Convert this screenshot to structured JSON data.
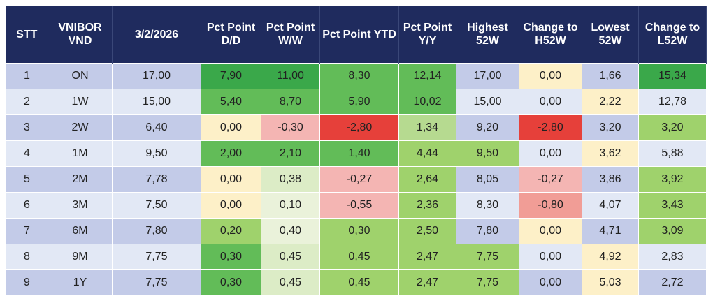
{
  "table": {
    "header": [
      "STT",
      "VNIBOR VND",
      "3/2/2026",
      "Pct Point D/D",
      "Pct Point W/W",
      "Pct Point YTD",
      "Pct Point Y/Y",
      "Highest 52W",
      "Change to H52W",
      "Lowest 52W",
      "Change to L52W"
    ],
    "rows": [
      [
        "1",
        "ON",
        "17,00",
        "7,90",
        "11,00",
        "8,30",
        "12,14",
        "17,00",
        "0,00",
        "1,66",
        "15,34"
      ],
      [
        "2",
        "1W",
        "15,00",
        "5,40",
        "8,70",
        "5,90",
        "10,02",
        "15,00",
        "0,00",
        "2,22",
        "12,78"
      ],
      [
        "3",
        "2W",
        "6,40",
        "0,00",
        "-0,30",
        "-2,80",
        "1,34",
        "9,20",
        "-2,80",
        "3,20",
        "3,20"
      ],
      [
        "4",
        "1M",
        "9,50",
        "2,00",
        "2,10",
        "1,40",
        "4,44",
        "9,50",
        "0,00",
        "3,62",
        "5,88"
      ],
      [
        "5",
        "2M",
        "7,78",
        "0,00",
        "0,38",
        "-0,27",
        "2,64",
        "8,05",
        "-0,27",
        "3,86",
        "3,92"
      ],
      [
        "6",
        "3M",
        "7,50",
        "0,00",
        "0,10",
        "-0,55",
        "2,36",
        "8,30",
        "-0,80",
        "4,07",
        "3,43"
      ],
      [
        "7",
        "6M",
        "7,80",
        "0,20",
        "0,40",
        "0,30",
        "2,50",
        "7,80",
        "0,00",
        "4,71",
        "3,09"
      ],
      [
        "8",
        "9M",
        "7,75",
        "0,30",
        "0,45",
        "0,45",
        "2,47",
        "7,75",
        "0,00",
        "4,92",
        "2,83"
      ],
      [
        "9",
        "1Y",
        "7,75",
        "0,30",
        "0,45",
        "0,45",
        "2,47",
        "7,75",
        "0,00",
        "5,03",
        "2,72"
      ]
    ]
  }
}
